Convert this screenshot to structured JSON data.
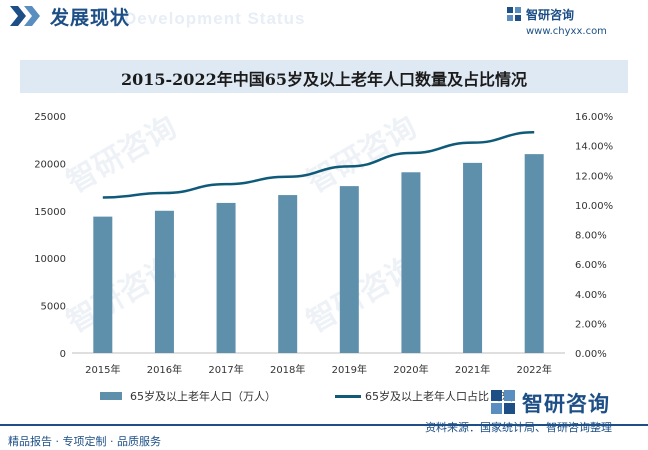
{
  "header": {
    "title": "发展现状",
    "watermark": "Development Status"
  },
  "brand": {
    "name": "智研咨询",
    "url": "www.chyxx.com"
  },
  "chart_title": "2015-2022年中国65岁及以上老年人口数量及占比情况",
  "chart_data": {
    "type": "bar",
    "categories": [
      "2015年",
      "2016年",
      "2017年",
      "2018年",
      "2019年",
      "2020年",
      "2021年",
      "2022年"
    ],
    "series": [
      {
        "name": "65岁及以上老年人口（万人）",
        "type": "bar",
        "axis": "left",
        "values": [
          14386,
          15003,
          15831,
          16658,
          17603,
          19064,
          20056,
          20978
        ]
      },
      {
        "name": "65岁及以上老年人口占比（%）",
        "type": "line",
        "axis": "right",
        "values": [
          10.5,
          10.8,
          11.4,
          11.9,
          12.6,
          13.5,
          14.2,
          14.9
        ]
      }
    ],
    "y_left": {
      "min": 0,
      "max": 25000,
      "ticks": [
        "0",
        "5000",
        "10000",
        "15000",
        "20000",
        "25000"
      ]
    },
    "y_right": {
      "min": 0,
      "max": 16,
      "ticks": [
        "0.00%",
        "2.00%",
        "4.00%",
        "6.00%",
        "8.00%",
        "10.00%",
        "12.00%",
        "14.00%",
        "16.00%"
      ]
    },
    "grid": false,
    "legend_position": "bottom",
    "colors": {
      "bar": "#5e8fab",
      "line": "#0e5a78"
    }
  },
  "legend": {
    "bar_label": "65岁及以上老年人口（万人）",
    "line_label": "65岁及以上老年人口占比（%）"
  },
  "footer": {
    "brand": "智研咨询",
    "source": "资料来源：国家统计局、智研咨询整理",
    "tagline": "精品报告 · 专项定制 · 品质服务"
  },
  "watermark": "智研咨询"
}
